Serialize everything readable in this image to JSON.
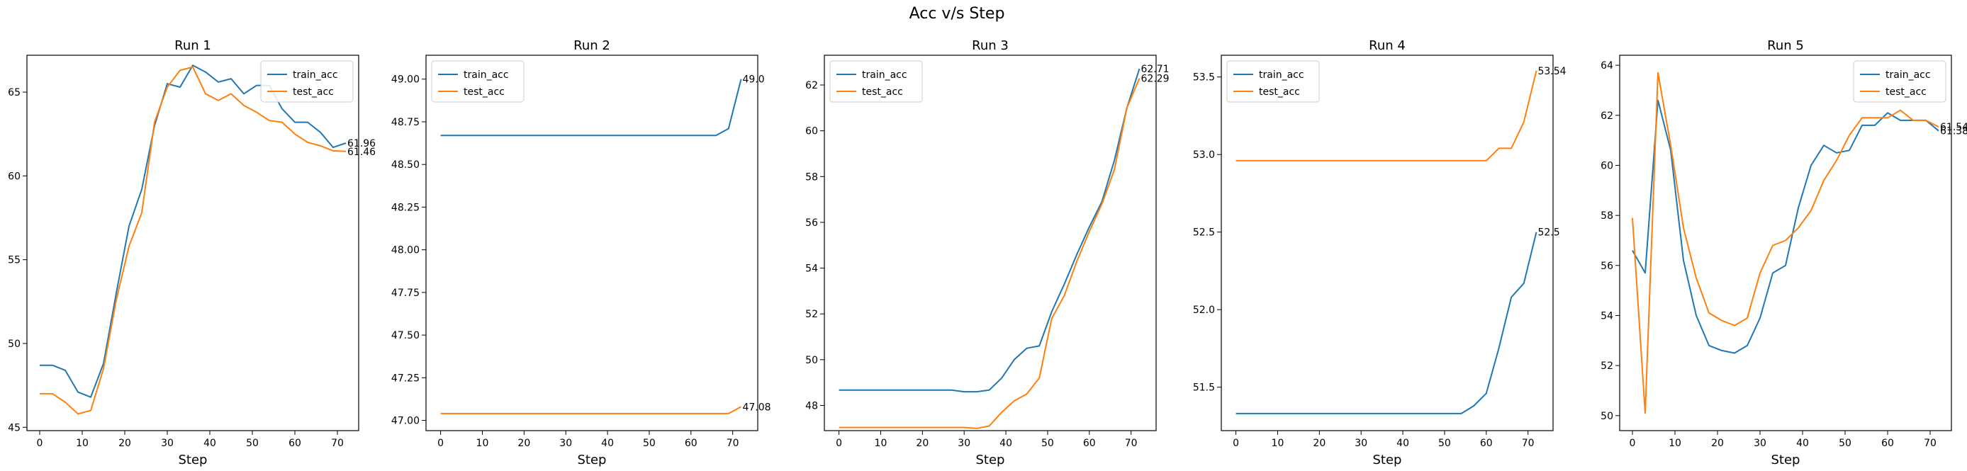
{
  "figure": {
    "title": "Acc v/s Step"
  },
  "colors": {
    "train": "#1f77b4",
    "test": "#ff7f0e"
  },
  "chart_data": [
    {
      "type": "line",
      "title": "Run 1",
      "xlabel": "Step",
      "ylabel": "",
      "xlim": [
        -3,
        75
      ],
      "ylim": [
        44.8,
        67.2
      ],
      "xticks": [
        "0",
        "10",
        "20",
        "30",
        "40",
        "50",
        "60",
        "70"
      ],
      "yticks": [
        "45",
        "50",
        "55",
        "60",
        "65"
      ],
      "legend": "top-right",
      "end_labels": [
        "61.96",
        "61.46"
      ],
      "x": [
        0,
        3,
        6,
        9,
        12,
        15,
        18,
        21,
        24,
        27,
        30,
        33,
        36,
        39,
        42,
        45,
        48,
        51,
        54,
        57,
        60,
        63,
        66,
        69,
        72
      ],
      "series": [
        {
          "name": "train_acc",
          "values": [
            48.7,
            48.7,
            48.4,
            47.1,
            46.8,
            48.8,
            53.0,
            57.0,
            59.2,
            63.0,
            65.5,
            65.3,
            66.6,
            66.2,
            65.6,
            65.8,
            64.9,
            65.4,
            65.4,
            64.0,
            63.2,
            63.2,
            62.6,
            61.7,
            61.96
          ]
        },
        {
          "name": "test_acc",
          "values": [
            47.0,
            47.0,
            46.5,
            45.8,
            46.0,
            48.5,
            52.6,
            55.8,
            57.8,
            63.2,
            65.3,
            66.3,
            66.5,
            64.9,
            64.5,
            64.9,
            64.2,
            63.8,
            63.3,
            63.2,
            62.5,
            62.0,
            61.8,
            61.5,
            61.46
          ]
        }
      ]
    },
    {
      "type": "line",
      "title": "Run 2",
      "xlabel": "Step",
      "ylabel": "",
      "xlim": [
        -3.5,
        76
      ],
      "ylim": [
        46.94,
        49.14
      ],
      "xticks": [
        "0",
        "10",
        "20",
        "30",
        "40",
        "50",
        "60",
        "70"
      ],
      "yticks": [
        "47.00",
        "47.25",
        "47.50",
        "47.75",
        "48.00",
        "48.25",
        "48.50",
        "48.75",
        "49.00"
      ],
      "legend": "top-left",
      "end_labels": [
        "49.0",
        "47.08"
      ],
      "x": [
        0,
        3,
        6,
        9,
        12,
        15,
        18,
        21,
        24,
        27,
        30,
        33,
        36,
        39,
        42,
        45,
        48,
        51,
        54,
        57,
        60,
        63,
        66,
        69,
        72
      ],
      "series": [
        {
          "name": "train_acc",
          "values": [
            48.67,
            48.67,
            48.67,
            48.67,
            48.67,
            48.67,
            48.67,
            48.67,
            48.67,
            48.67,
            48.67,
            48.67,
            48.67,
            48.67,
            48.67,
            48.67,
            48.67,
            48.67,
            48.67,
            48.67,
            48.67,
            48.67,
            48.67,
            48.71,
            49.0
          ]
        },
        {
          "name": "test_acc",
          "values": [
            47.04,
            47.04,
            47.04,
            47.04,
            47.04,
            47.04,
            47.04,
            47.04,
            47.04,
            47.04,
            47.04,
            47.04,
            47.04,
            47.04,
            47.04,
            47.04,
            47.04,
            47.04,
            47.04,
            47.04,
            47.04,
            47.04,
            47.04,
            47.04,
            47.08
          ]
        }
      ]
    },
    {
      "type": "line",
      "title": "Run 3",
      "xlabel": "Step",
      "ylabel": "",
      "xlim": [
        -3.5,
        76
      ],
      "ylim": [
        46.9,
        63.3
      ],
      "xticks": [
        "0",
        "10",
        "20",
        "30",
        "40",
        "50",
        "60",
        "70"
      ],
      "yticks": [
        "48",
        "50",
        "52",
        "54",
        "56",
        "58",
        "60",
        "62"
      ],
      "legend": "top-left",
      "end_labels": [
        "62.71",
        "62.29"
      ],
      "x": [
        0,
        3,
        6,
        9,
        12,
        15,
        18,
        21,
        24,
        27,
        30,
        33,
        36,
        39,
        42,
        45,
        48,
        51,
        54,
        57,
        60,
        63,
        66,
        69,
        72
      ],
      "series": [
        {
          "name": "train_acc",
          "values": [
            48.67,
            48.67,
            48.67,
            48.67,
            48.67,
            48.67,
            48.67,
            48.67,
            48.67,
            48.67,
            48.6,
            48.6,
            48.67,
            49.2,
            50.0,
            50.5,
            50.6,
            52.1,
            53.3,
            54.6,
            55.8,
            56.9,
            58.7,
            61.0,
            62.71
          ]
        },
        {
          "name": "test_acc",
          "values": [
            47.04,
            47.04,
            47.04,
            47.04,
            47.04,
            47.04,
            47.04,
            47.04,
            47.04,
            47.04,
            47.04,
            47.0,
            47.1,
            47.7,
            48.2,
            48.5,
            49.2,
            51.8,
            52.8,
            54.3,
            55.6,
            56.8,
            58.3,
            61.0,
            62.29
          ]
        }
      ]
    },
    {
      "type": "line",
      "title": "Run 4",
      "xlabel": "Step",
      "ylabel": "",
      "xlim": [
        -3.5,
        76
      ],
      "ylim": [
        51.22,
        53.64
      ],
      "xticks": [
        "0",
        "10",
        "20",
        "30",
        "40",
        "50",
        "60",
        "70"
      ],
      "yticks": [
        "51.5",
        "52.0",
        "52.5",
        "53.0",
        "53.5"
      ],
      "legend": "top-left",
      "end_labels": [
        "53.54",
        "52.5"
      ],
      "x": [
        0,
        3,
        6,
        9,
        12,
        15,
        18,
        21,
        24,
        27,
        30,
        33,
        36,
        39,
        42,
        45,
        48,
        51,
        54,
        57,
        60,
        63,
        66,
        69,
        72
      ],
      "series": [
        {
          "name": "train_acc",
          "values": [
            51.33,
            51.33,
            51.33,
            51.33,
            51.33,
            51.33,
            51.33,
            51.33,
            51.33,
            51.33,
            51.33,
            51.33,
            51.33,
            51.33,
            51.33,
            51.33,
            51.33,
            51.33,
            51.33,
            51.38,
            51.46,
            51.75,
            52.08,
            52.17,
            52.5
          ]
        },
        {
          "name": "test_acc",
          "values": [
            52.96,
            52.96,
            52.96,
            52.96,
            52.96,
            52.96,
            52.96,
            52.96,
            52.96,
            52.96,
            52.96,
            52.96,
            52.96,
            52.96,
            52.96,
            52.96,
            52.96,
            52.96,
            52.96,
            52.96,
            52.96,
            53.04,
            53.04,
            53.21,
            53.54
          ]
        }
      ]
    },
    {
      "type": "line",
      "title": "Run 5",
      "xlabel": "Step",
      "ylabel": "",
      "xlim": [
        -3,
        75
      ],
      "ylim": [
        49.4,
        64.4
      ],
      "xticks": [
        "0",
        "10",
        "20",
        "30",
        "40",
        "50",
        "60",
        "70"
      ],
      "yticks": [
        "50",
        "52",
        "54",
        "56",
        "58",
        "60",
        "62",
        "64"
      ],
      "legend": "top-right",
      "end_labels": [
        "61.54",
        "61.38"
      ],
      "x": [
        0,
        3,
        6,
        9,
        12,
        15,
        18,
        21,
        24,
        27,
        30,
        33,
        36,
        39,
        42,
        45,
        48,
        51,
        54,
        57,
        60,
        63,
        66,
        69,
        72
      ],
      "series": [
        {
          "name": "train_acc",
          "values": [
            56.6,
            55.7,
            62.6,
            60.6,
            56.2,
            54.0,
            52.8,
            52.6,
            52.5,
            52.8,
            53.9,
            55.7,
            56.0,
            58.3,
            60.0,
            60.8,
            60.5,
            60.6,
            61.6,
            61.6,
            62.1,
            61.8,
            61.8,
            61.8,
            61.38
          ]
        },
        {
          "name": "test_acc",
          "values": [
            57.9,
            50.1,
            63.7,
            60.8,
            57.5,
            55.5,
            54.1,
            53.8,
            53.6,
            53.9,
            55.7,
            56.8,
            57.0,
            57.5,
            58.2,
            59.4,
            60.2,
            61.2,
            61.9,
            61.9,
            61.9,
            62.2,
            61.8,
            61.8,
            61.54
          ]
        }
      ]
    }
  ]
}
